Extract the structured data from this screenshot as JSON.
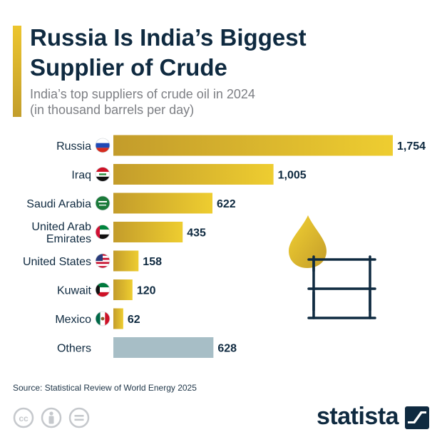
{
  "header": {
    "title_line1": "Russia Is India’s Biggest",
    "title_line2": "Supplier of Crude",
    "subtitle_line1": "India’s top suppliers of crude oil in 2024",
    "subtitle_line2": "(in thousand barrels per day)"
  },
  "footer": {
    "source": "Source: Statistical Review of World Energy 2025",
    "brand": "statista"
  },
  "colors": {
    "bar_gold_light": "#f0cf2e",
    "bar_gold_dark": "#c09a2a",
    "bar_others": "#a7bec6",
    "text_dark": "#0f2a40",
    "subtitle_gray": "#7d7f84",
    "icon_gray": "#c5c8cc"
  },
  "chart_data": {
    "type": "bar",
    "orientation": "horizontal",
    "categories": [
      "Russia",
      "Iraq",
      "Saudi Arabia",
      "United Arab Emirates",
      "United States",
      "Kuwait",
      "Mexico",
      "Others"
    ],
    "category_lines": [
      [
        "Russia"
      ],
      [
        "Iraq"
      ],
      [
        "Saudi Arabia"
      ],
      [
        "United Arab",
        "Emirates"
      ],
      [
        "United States"
      ],
      [
        "Kuwait"
      ],
      [
        "Mexico"
      ],
      [
        "Others"
      ]
    ],
    "values": [
      1754,
      1005,
      622,
      435,
      158,
      120,
      62,
      628
    ],
    "value_labels": [
      "1,754",
      "1,005",
      "622",
      "435",
      "158",
      "120",
      "62",
      "628"
    ],
    "flags": [
      "russia-flag-icon",
      "iraq-flag-icon",
      "saudi-arabia-flag-icon",
      "uae-flag-icon",
      "usa-flag-icon",
      "kuwait-flag-icon",
      "mexico-flag-icon",
      ""
    ],
    "xlim": [
      0,
      1754
    ],
    "grid": false,
    "legend": "none",
    "illustration": "oil-drop-and-barrel"
  }
}
